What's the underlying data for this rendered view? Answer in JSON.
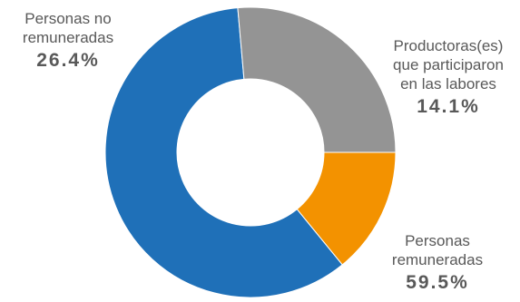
{
  "chart_data": {
    "type": "pie",
    "title": "",
    "donut": true,
    "start_angle_deg": 0,
    "direction": "clockwise",
    "slices": [
      {
        "label_lines": [
          "Productoras(es)",
          "que participaron",
          "en las labores"
        ],
        "value": 14.1,
        "value_label": "14.1%",
        "color": "#F39200"
      },
      {
        "label_lines": [
          "Personas",
          "remuneradas"
        ],
        "value": 59.5,
        "value_label": "59.5%",
        "color": "#1F70B8"
      },
      {
        "label_lines": [
          "Personas no",
          "remuneradas"
        ],
        "value": 26.4,
        "value_label": "26.4%",
        "color": "#949494"
      }
    ]
  }
}
